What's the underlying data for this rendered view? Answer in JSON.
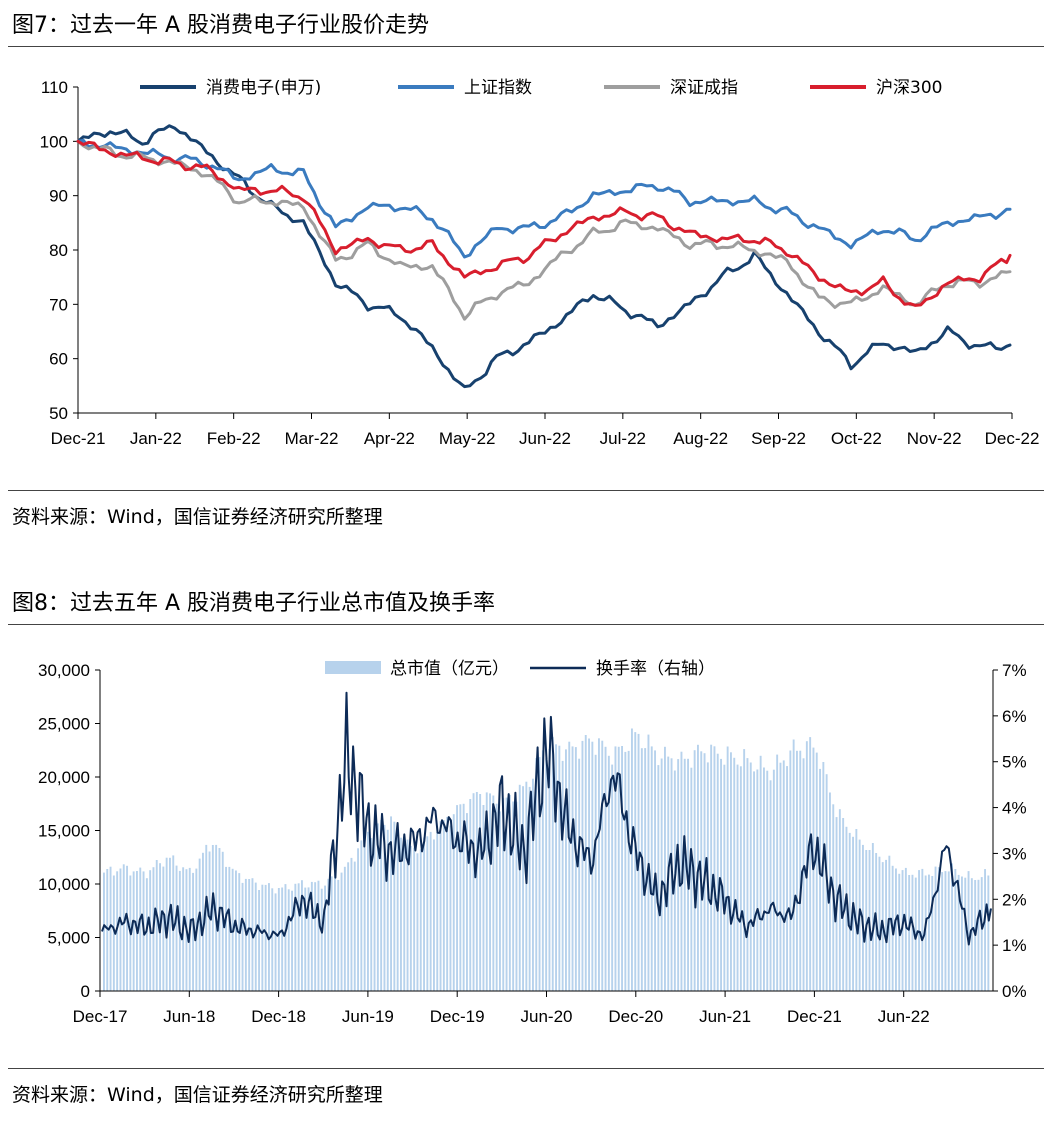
{
  "figures": [
    {
      "title": "图7：过去一年 A 股消费电子行业股价走势",
      "source": "资料来源：Wind，国信证券经济研究所整理",
      "chart_data": {
        "type": "line",
        "ylim": [
          50,
          110
        ],
        "yticks": [
          "110",
          "100",
          "90",
          "80",
          "70",
          "60",
          "50"
        ],
        "xlabels": [
          "Dec-21",
          "Jan-22",
          "Feb-22",
          "Mar-22",
          "Apr-22",
          "May-22",
          "Jun-22",
          "Jul-22",
          "Aug-22",
          "Sep-22",
          "Oct-22",
          "Nov-22",
          "Dec-22"
        ],
        "legend_position": "top",
        "series": [
          {
            "name": "消费电子(申万)",
            "color": "#17416e",
            "values": [
              100,
              102,
              100,
              103,
              98,
              93,
              88,
              85,
              74,
              70,
              68,
              62,
              54,
              60,
              63,
              67,
              72,
              69,
              66,
              70,
              75,
              79,
              72,
              65,
              59,
              63,
              61,
              65,
              62,
              62.5
            ]
          },
          {
            "name": "上证指数",
            "color": "#3a7bbf",
            "values": [
              100,
              99,
              98,
              97,
              96,
              93,
              95,
              94,
              84,
              88,
              88,
              86,
              79,
              84,
              84,
              86,
              90,
              91,
              92,
              89,
              89,
              89,
              87,
              84,
              81,
              84,
              82,
              85,
              86,
              87.5
            ]
          },
          {
            "name": "深证成指",
            "color": "#9e9e9e",
            "values": [
              100,
              98,
              97,
              96,
              94,
              89,
              89,
              88,
              78,
              81,
              77,
              77,
              68,
              72,
              74,
              79,
              83,
              85,
              84,
              81,
              81,
              80,
              78,
              71,
              70,
              73,
              70,
              74,
              74,
              76
            ]
          },
          {
            "name": "沪深300",
            "color": "#d81e2d",
            "values": [
              100,
              98,
              97,
              96,
              95,
              91,
              91,
              90,
              80,
              82,
              80,
              81,
              75,
              77,
              79,
              83,
              86,
              87,
              86,
              83,
              82,
              82,
              80,
              75,
              72,
              74,
              69,
              74,
              75,
              79
            ]
          }
        ]
      }
    },
    {
      "title": "图8：过去五年 A 股消费电子行业总市值及换手率",
      "source": "资料来源：Wind，国信证券经济研究所整理",
      "chart_data": {
        "type": "bar",
        "ylim_left": [
          0,
          30000
        ],
        "ylim_right": [
          0,
          7
        ],
        "yticks_left": [
          "30,000",
          "25,000",
          "20,000",
          "15,000",
          "10,000",
          "5,000",
          "0"
        ],
        "yticks_right": [
          "7%",
          "6%",
          "5%",
          "4%",
          "3%",
          "2%",
          "1%",
          "0%"
        ],
        "xlabels": [
          "Dec-17",
          "Jun-18",
          "Dec-18",
          "Jun-19",
          "Dec-19",
          "Jun-20",
          "Dec-20",
          "Jun-21",
          "Dec-21",
          "Jun-22"
        ],
        "legend_position": "top",
        "series": [
          {
            "name": "总市值（亿元）",
            "type": "bar",
            "axis": "left",
            "color": "#b7d2ec",
            "values": [
              11000,
              11500,
              11000,
              12500,
              11000,
              14000,
              11000,
              10000,
              9500,
              10000,
              10000,
              11500,
              15000,
              16000,
              13000,
              15000,
              17000,
              18500,
              17500,
              19000,
              23000,
              22500,
              23500,
              22000,
              24000,
              22000,
              21500,
              22500,
              22000,
              21500,
              20500,
              22500,
              23000,
              16500,
              14000,
              12500,
              11000,
              11000,
              11500,
              10500,
              11000
            ]
          },
          {
            "name": "换手率（右轴）",
            "type": "line",
            "axis": "right",
            "color": "#0d2b57",
            "values": [
              1.3,
              1.5,
              1.4,
              1.6,
              1.3,
              1.8,
              1.4,
              1.3,
              1.2,
              2.0,
              1.5,
              5.1,
              3.5,
              3.0,
              3.2,
              3.8,
              3.3,
              3.0,
              4.0,
              3.0,
              5.3,
              3.5,
              2.8,
              4.8,
              3.0,
              2.0,
              2.8,
              2.4,
              2.0,
              1.4,
              1.8,
              1.6,
              3.2,
              2.0,
              1.5,
              1.3,
              1.5,
              1.2,
              3.2,
              1.2,
              1.8
            ]
          }
        ]
      }
    }
  ]
}
